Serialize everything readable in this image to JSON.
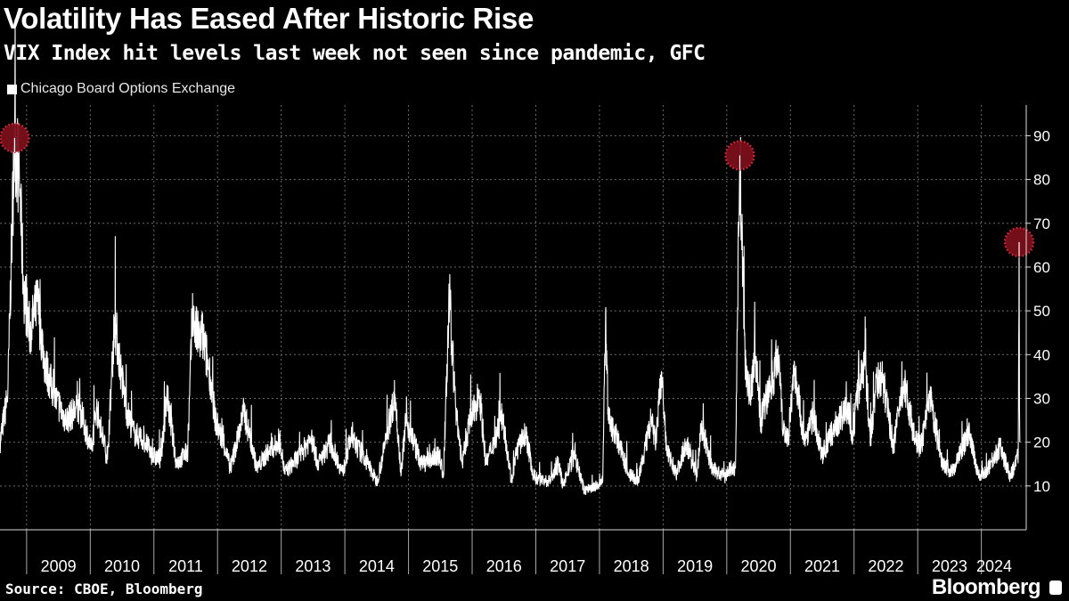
{
  "title": "Volatility Has Eased After Historic Rise",
  "subtitle": "VIX Index hit levels last week not seen since pandemic, GFC",
  "legend_label": "Chicago Board Options Exchange",
  "source": "Source: CBOE, Bloomberg",
  "brand": "Bloomberg",
  "colors": {
    "background": "#000000",
    "line": "#ffffff",
    "highlight_fill": "#7a0f1a",
    "highlight_border": "#d42a3c",
    "grid": "#777777"
  },
  "chart_data": {
    "type": "line",
    "title": "Volatility Has Eased After Historic Rise",
    "subtitle": "VIX Index hit levels last week not seen since pandemic, GFC",
    "ylim": [
      0,
      97
    ],
    "yaxis_position": "right",
    "y_ticks": [
      10,
      20,
      30,
      40,
      50,
      60,
      70,
      80,
      90
    ],
    "x_ticks": [
      "2009",
      "2010",
      "2011",
      "2012",
      "2013",
      "2014",
      "2015",
      "2016",
      "2017",
      "2018",
      "2019",
      "2020",
      "2021",
      "2022",
      "2023",
      "2024"
    ],
    "xlim": [
      "2008-08-01",
      "2024-09-15"
    ],
    "grid": true,
    "legend_placement": "top-left",
    "series": [
      {
        "name": "Chicago Board Options Exchange",
        "points": [
          [
            "2008-08-01",
            20
          ],
          [
            "2008-09-15",
            31
          ],
          [
            "2008-10-10",
            70
          ],
          [
            "2008-10-24",
            89.5
          ],
          [
            "2008-11-20",
            81
          ],
          [
            "2008-12-15",
            55
          ],
          [
            "2009-01-20",
            45
          ],
          [
            "2009-03-05",
            52
          ],
          [
            "2009-04-15",
            38
          ],
          [
            "2009-06-15",
            30
          ],
          [
            "2009-08-15",
            25
          ],
          [
            "2009-10-30",
            28
          ],
          [
            "2009-12-20",
            21
          ],
          [
            "2010-01-10",
            18
          ],
          [
            "2010-02-05",
            28
          ],
          [
            "2010-04-10",
            16
          ],
          [
            "2010-05-20",
            48
          ],
          [
            "2010-06-30",
            35
          ],
          [
            "2010-07-30",
            27
          ],
          [
            "2010-09-10",
            22
          ],
          [
            "2010-11-15",
            20
          ],
          [
            "2010-12-20",
            17
          ],
          [
            "2011-02-10",
            16
          ],
          [
            "2011-03-16",
            31
          ],
          [
            "2011-05-10",
            15
          ],
          [
            "2011-07-15",
            18
          ],
          [
            "2011-08-08",
            48
          ],
          [
            "2011-09-20",
            43
          ],
          [
            "2011-10-03",
            45
          ],
          [
            "2011-11-20",
            35
          ],
          [
            "2011-12-20",
            25
          ],
          [
            "2012-02-10",
            19
          ],
          [
            "2012-03-15",
            14
          ],
          [
            "2012-06-01",
            27
          ],
          [
            "2012-08-15",
            14
          ],
          [
            "2012-10-20",
            18
          ],
          [
            "2012-12-28",
            20
          ],
          [
            "2013-01-20",
            13
          ],
          [
            "2013-04-18",
            17
          ],
          [
            "2013-06-20",
            21
          ],
          [
            "2013-08-01",
            15
          ],
          [
            "2013-10-08",
            20
          ],
          [
            "2013-12-20",
            13
          ],
          [
            "2014-02-03",
            21
          ],
          [
            "2014-04-15",
            17
          ],
          [
            "2014-07-03",
            11
          ],
          [
            "2014-08-07",
            17
          ],
          [
            "2014-10-15",
            31
          ],
          [
            "2014-11-20",
            13
          ],
          [
            "2014-12-16",
            25
          ],
          [
            "2015-01-15",
            22
          ],
          [
            "2015-03-15",
            15
          ],
          [
            "2015-06-29",
            17
          ],
          [
            "2015-07-20",
            12
          ],
          [
            "2015-08-24",
            53
          ],
          [
            "2015-09-28",
            28
          ],
          [
            "2015-11-05",
            15
          ],
          [
            "2015-12-14",
            24
          ],
          [
            "2016-01-20",
            28
          ],
          [
            "2016-02-11",
            32
          ],
          [
            "2016-03-20",
            15
          ],
          [
            "2016-06-24",
            26
          ],
          [
            "2016-08-15",
            11
          ],
          [
            "2016-09-12",
            18
          ],
          [
            "2016-11-04",
            22
          ],
          [
            "2016-12-20",
            12
          ],
          [
            "2017-03-15",
            11
          ],
          [
            "2017-05-17",
            15
          ],
          [
            "2017-06-01",
            10
          ],
          [
            "2017-08-10",
            17
          ],
          [
            "2017-10-05",
            9
          ],
          [
            "2017-12-20",
            10
          ],
          [
            "2018-01-20",
            11
          ],
          [
            "2018-02-05",
            50
          ],
          [
            "2018-02-20",
            25
          ],
          [
            "2018-04-05",
            22
          ],
          [
            "2018-06-15",
            13
          ],
          [
            "2018-08-10",
            11
          ],
          [
            "2018-10-24",
            25
          ],
          [
            "2018-11-20",
            20
          ],
          [
            "2018-12-24",
            36
          ],
          [
            "2019-01-20",
            18
          ],
          [
            "2019-03-20",
            13
          ],
          [
            "2019-05-13",
            20
          ],
          [
            "2019-07-15",
            12
          ],
          [
            "2019-08-05",
            24
          ],
          [
            "2019-10-10",
            14
          ],
          [
            "2019-12-20",
            12
          ],
          [
            "2020-01-20",
            14
          ],
          [
            "2020-02-20",
            14
          ],
          [
            "2020-02-28",
            40
          ],
          [
            "2020-03-16",
            85.5
          ],
          [
            "2020-04-15",
            40
          ],
          [
            "2020-05-15",
            30
          ],
          [
            "2020-06-11",
            41
          ],
          [
            "2020-07-15",
            25
          ],
          [
            "2020-09-08",
            33
          ],
          [
            "2020-10-28",
            40
          ],
          [
            "2020-11-20",
            23
          ],
          [
            "2020-12-20",
            21
          ],
          [
            "2021-01-27",
            37
          ],
          [
            "2021-03-20",
            20
          ],
          [
            "2021-05-12",
            26
          ],
          [
            "2021-07-01",
            17
          ],
          [
            "2021-09-20",
            24
          ],
          [
            "2021-11-30",
            28
          ],
          [
            "2021-12-20",
            20
          ],
          [
            "2022-01-24",
            32
          ],
          [
            "2022-03-07",
            38
          ],
          [
            "2022-04-05",
            20
          ],
          [
            "2022-05-09",
            35
          ],
          [
            "2022-06-16",
            34
          ],
          [
            "2022-08-15",
            19
          ],
          [
            "2022-10-12",
            34
          ],
          [
            "2022-12-20",
            20
          ],
          [
            "2023-01-20",
            19
          ],
          [
            "2023-03-13",
            30
          ],
          [
            "2023-05-15",
            16
          ],
          [
            "2023-07-15",
            13
          ],
          [
            "2023-10-20",
            22
          ],
          [
            "2023-12-20",
            12
          ],
          [
            "2024-01-20",
            13
          ],
          [
            "2024-04-19",
            19
          ],
          [
            "2024-06-15",
            12
          ],
          [
            "2024-07-20",
            16
          ],
          [
            "2024-07-31",
            17
          ],
          [
            "2024-08-05",
            65.7
          ],
          [
            "2024-08-07",
            28
          ],
          [
            "2024-08-09",
            20
          ]
        ]
      }
    ],
    "highlights": [
      {
        "date": "2008-10-24",
        "value": 89.5
      },
      {
        "date": "2020-03-16",
        "value": 85.5
      },
      {
        "date": "2024-08-05",
        "value": 65.7
      }
    ]
  }
}
